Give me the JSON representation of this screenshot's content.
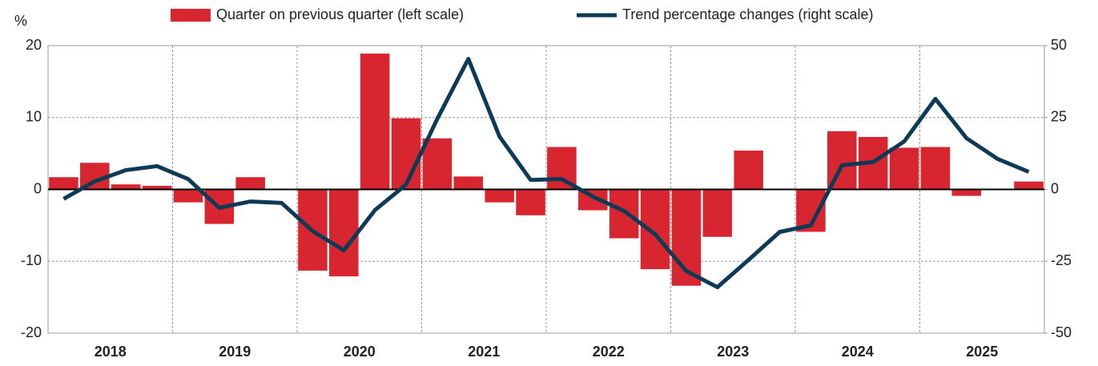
{
  "chart_data": {
    "type": "bar_line",
    "y_axis_label": "%",
    "groups": [
      "2018",
      "2019",
      "2020",
      "2021",
      "2022",
      "2023",
      "2024",
      "2025"
    ],
    "periods_per_group": 4,
    "series": [
      {
        "name": "Quarter on previous quarter (left scale)",
        "type": "bar",
        "color": "#d7262f",
        "axis": "y",
        "values": [
          1.7,
          3.7,
          0.7,
          0.5,
          -1.8,
          -4.8,
          1.7,
          0,
          -11.3,
          -12.1,
          18.9,
          9.9,
          7.1,
          1.8,
          -1.8,
          -3.6,
          5.9,
          -2.9,
          -6.8,
          -11.1,
          -13.4,
          -6.6,
          5.4,
          0,
          -5.9,
          8.1,
          7.3,
          5.8,
          5.9,
          -0.9,
          0,
          1.1
        ]
      },
      {
        "name": "Trend percentage changes (right scale)",
        "type": "line",
        "color": "#0d3a56",
        "axis": "y2",
        "values": [
          -3.3,
          2.8,
          6.7,
          8.1,
          3.6,
          -6.4,
          -4.2,
          -4.7,
          -14.5,
          -21.2,
          -7.2,
          1.7,
          24.5,
          45.4,
          18.4,
          3.3,
          3.6,
          -2.5,
          -7.5,
          -15.6,
          -28.4,
          -34,
          -24.5,
          -14.8,
          -12.5,
          8.4,
          9.5,
          16.7,
          31.5,
          17.8,
          10.6,
          6.1
        ]
      }
    ],
    "ylim": [
      -20,
      20
    ],
    "yticks": [
      -20,
      -10,
      0,
      10,
      20
    ],
    "y2lim": [
      -50,
      50
    ],
    "y2ticks": [
      -50,
      -25,
      0,
      25,
      50
    ],
    "grid": true,
    "legend": "top"
  }
}
